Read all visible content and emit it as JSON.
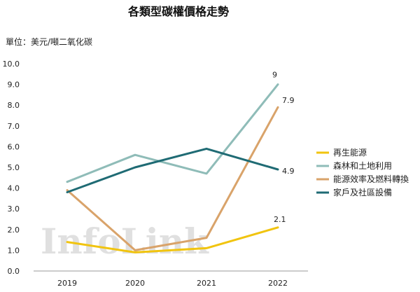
{
  "chart_data": {
    "type": "line",
    "title": "各類型碳權價格走勢",
    "ylabel": "單位：美元/噸二氧化碳",
    "xlabel": "",
    "categories": [
      "2019",
      "2020",
      "2021",
      "2022"
    ],
    "ylim": [
      0,
      10
    ],
    "yticks": [
      "0.0",
      "1.0",
      "2.0",
      "3.0",
      "4.0",
      "5.0",
      "6.0",
      "7.0",
      "8.0",
      "9.0",
      "10.0"
    ],
    "grid": false,
    "legend_position": "right",
    "series": [
      {
        "name": "再生能源",
        "color": "#f1c40f",
        "values": [
          1.4,
          0.9,
          1.1,
          2.1
        ],
        "end_label": "2.1"
      },
      {
        "name": "森林和土地利用",
        "color": "#8fbcb8",
        "values": [
          4.3,
          5.6,
          4.7,
          9.0
        ],
        "end_label": "9"
      },
      {
        "name": "能源效率及燃料轉換",
        "color": "#d9a36a",
        "values": [
          3.9,
          1.0,
          1.6,
          7.9
        ],
        "end_label": "7.9"
      },
      {
        "name": "家戶及社區設備",
        "color": "#1f6b74",
        "values": [
          3.8,
          5.0,
          5.9,
          4.9
        ],
        "end_label": "4.9"
      }
    ],
    "watermark": "InfoLink"
  }
}
